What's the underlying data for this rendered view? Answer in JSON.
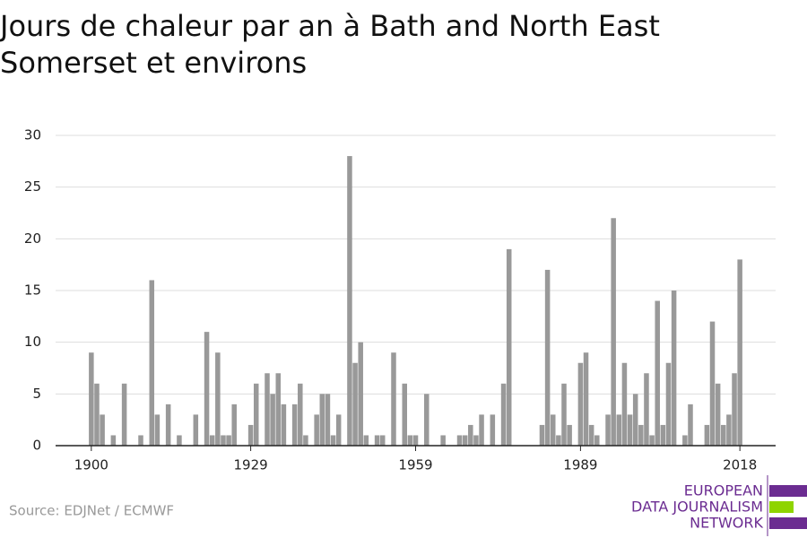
{
  "chart_data": {
    "type": "bar",
    "title_lines": [
      "Jours de chaleur par an à Bath and North East",
      "Somerset et environs"
    ],
    "source": "Source: EDJNet / ECMWF",
    "logo": [
      "EUROPEAN",
      "DATA JOURNALISM",
      "NETWORK"
    ],
    "color": "#999999",
    "x": [
      1900,
      1901,
      1902,
      1903,
      1904,
      1905,
      1906,
      1907,
      1908,
      1909,
      1910,
      1911,
      1912,
      1913,
      1914,
      1915,
      1916,
      1917,
      1918,
      1919,
      1920,
      1921,
      1922,
      1923,
      1924,
      1925,
      1926,
      1927,
      1928,
      1929,
      1930,
      1931,
      1932,
      1933,
      1934,
      1935,
      1936,
      1937,
      1938,
      1939,
      1940,
      1941,
      1942,
      1943,
      1944,
      1945,
      1946,
      1947,
      1948,
      1949,
      1950,
      1951,
      1952,
      1953,
      1954,
      1955,
      1956,
      1957,
      1958,
      1959,
      1960,
      1961,
      1962,
      1963,
      1964,
      1965,
      1966,
      1967,
      1968,
      1969,
      1970,
      1971,
      1972,
      1973,
      1974,
      1975,
      1976,
      1977,
      1978,
      1979,
      1980,
      1981,
      1982,
      1983,
      1984,
      1985,
      1986,
      1987,
      1988,
      1989,
      1990,
      1991,
      1992,
      1993,
      1994,
      1995,
      1996,
      1997,
      1998,
      1999,
      2000,
      2001,
      2002,
      2003,
      2004,
      2005,
      2006,
      2007,
      2008,
      2009,
      2010,
      2011,
      2012,
      2013,
      2014,
      2015,
      2016,
      2017,
      2018
    ],
    "values": [
      9,
      6,
      3,
      0,
      1,
      0,
      6,
      0,
      0,
      1,
      0,
      16,
      3,
      0,
      4,
      0,
      1,
      0,
      0,
      3,
      0,
      11,
      1,
      9,
      1,
      1,
      4,
      0,
      0,
      2,
      6,
      0,
      7,
      5,
      7,
      4,
      0,
      4,
      6,
      1,
      0,
      3,
      5,
      5,
      1,
      3,
      0,
      28,
      8,
      10,
      1,
      0,
      1,
      1,
      0,
      9,
      0,
      6,
      1,
      1,
      0,
      5,
      0,
      0,
      1,
      0,
      0,
      1,
      1,
      2,
      1,
      3,
      0,
      3,
      0,
      6,
      19,
      0,
      0,
      0,
      0,
      0,
      2,
      17,
      3,
      1,
      6,
      2,
      0,
      8,
      9,
      2,
      1,
      0,
      3,
      22,
      3,
      8,
      3,
      5,
      2,
      7,
      1,
      14,
      2,
      8,
      15,
      0,
      1,
      4,
      0,
      0,
      2,
      12,
      6,
      2,
      3,
      7,
      18
    ],
    "xlim": [
      1893.5,
      2024.5
    ],
    "xticks": [
      1900,
      1929,
      1959,
      1989,
      2018
    ],
    "ylim": [
      0,
      30
    ],
    "yticks": [
      0,
      5,
      10,
      15,
      20,
      25,
      30
    ],
    "grid": true
  }
}
